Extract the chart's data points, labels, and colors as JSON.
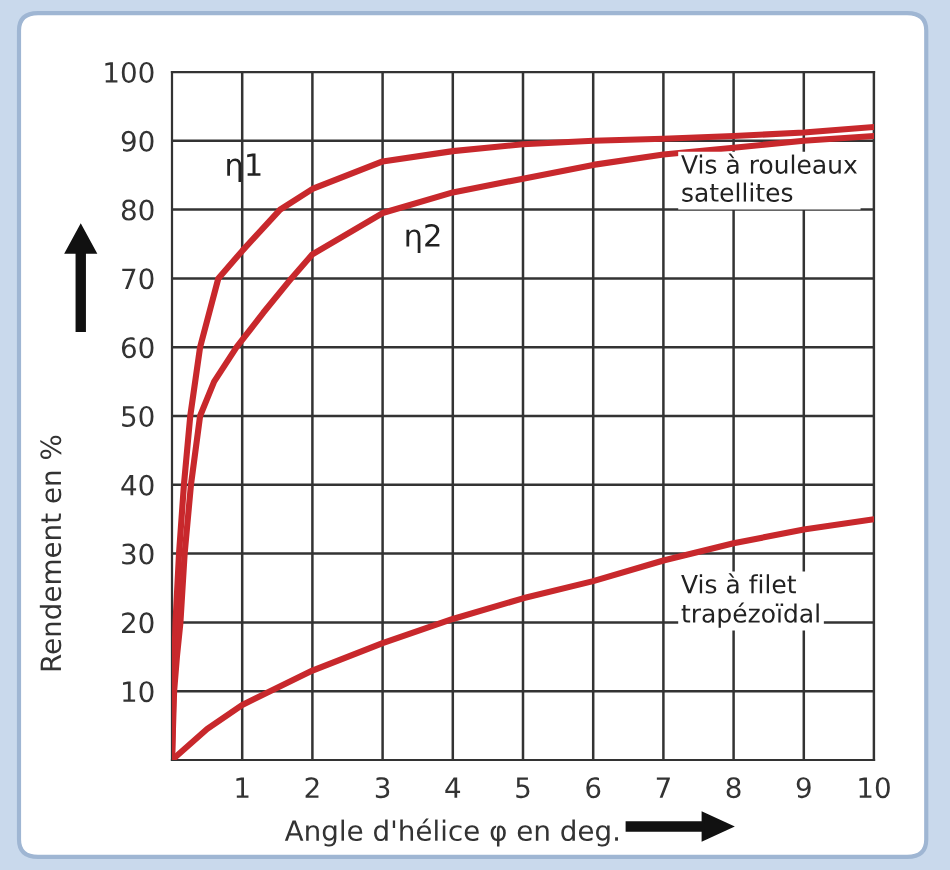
{
  "chart_data": {
    "type": "line",
    "xlabel": "Angle d'hélice φ en deg.",
    "ylabel": "Rendement en %",
    "xlim": [
      0,
      10
    ],
    "ylim": [
      0,
      100
    ],
    "xticks": [
      1,
      2,
      3,
      4,
      5,
      6,
      7,
      8,
      9,
      10
    ],
    "yticks": [
      10,
      20,
      30,
      40,
      50,
      60,
      70,
      80,
      90,
      100
    ],
    "grid": true,
    "line_style": "solid",
    "marker": "none",
    "series": [
      {
        "name": "η1",
        "color": "#c8282c",
        "x": [
          0,
          0.02,
          0.05,
          0.1,
          0.17,
          0.26,
          0.4,
          0.66,
          1,
          1.54,
          2,
          3,
          4,
          5,
          6,
          7,
          8,
          9,
          10
        ],
        "values": [
          0,
          10,
          20,
          30,
          40,
          50,
          60,
          70,
          74,
          80,
          83,
          87,
          88.5,
          89.5,
          90,
          90.3,
          90.7,
          91.2,
          92
        ]
      },
      {
        "name": "η2",
        "color": "#c8282c",
        "x": [
          0,
          0.03,
          0.07,
          0.12,
          0.18,
          0.27,
          0.4,
          0.6,
          0.92,
          1.3,
          1.7,
          2,
          3,
          4,
          5,
          6,
          7,
          8,
          9,
          10
        ],
        "values": [
          0,
          10,
          15,
          20,
          30,
          40,
          50,
          55,
          60,
          65,
          70,
          73.5,
          79.5,
          82.5,
          84.5,
          86.5,
          88,
          89,
          90,
          90.7
        ]
      },
      {
        "name": "Vis à filet trapézoïdal",
        "color": "#c8282c",
        "x": [
          0,
          0.5,
          1,
          2,
          3,
          4,
          5,
          6,
          7,
          8,
          9,
          10
        ],
        "values": [
          0,
          4.5,
          8,
          13,
          17,
          20.5,
          23.5,
          26,
          29,
          31.5,
          33.5,
          35
        ]
      }
    ],
    "annotations": [
      "Vis à rouleaux satellites"
    ]
  }
}
